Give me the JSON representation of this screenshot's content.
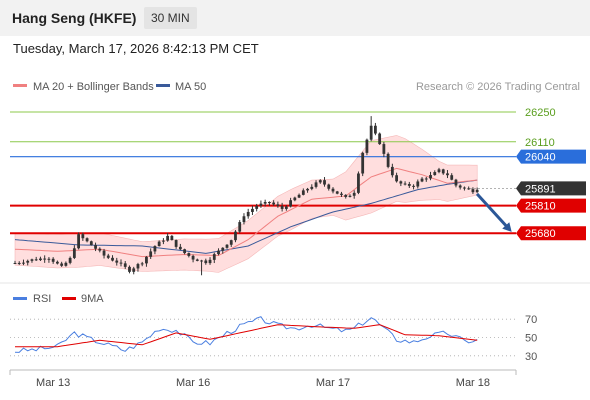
{
  "header": {
    "title": "Hang Seng (HKFE)",
    "interval": "30 MIN"
  },
  "datetime": "Tuesday, March 17, 2026 8:42:13 PM CET",
  "legend": {
    "ma20": "MA 20 + Bollinger Bands",
    "ma50": "MA 50",
    "credit": "Research © 2026 Trading Central",
    "rsi": "RSI",
    "rsi_ma": "9MA"
  },
  "colors": {
    "candle": "#333333",
    "ma20": "#f08080",
    "bands": "#ffd8d8",
    "ma50": "#3a5a9a",
    "target": "#8cc84b",
    "target_text": "#5a9e1e",
    "pivot": "#2a6edb",
    "support": "#e00000",
    "last": "#333333",
    "arrow": "#2b5797",
    "rsi": "#4a7fe0",
    "rsi_ma": "#e00000"
  },
  "chart_data": [
    {
      "type": "candlestick",
      "price_range": [
        25460,
        26330
      ],
      "x_ticks": [
        "Mar 13",
        "Mar 16",
        "Mar 17",
        "Mar 18"
      ],
      "levels": [
        {
          "value": 26250,
          "label": "26250",
          "kind": "target"
        },
        {
          "value": 26110,
          "label": "26110",
          "kind": "target"
        },
        {
          "value": 26040,
          "label": "26040",
          "kind": "pivot"
        },
        {
          "value": 25891,
          "label": "25891",
          "kind": "last"
        },
        {
          "value": 25810,
          "label": "25810",
          "kind": "support"
        },
        {
          "value": 25680,
          "label": "25680",
          "kind": "support"
        }
      ],
      "anchors": [
        [
          0,
          25540
        ],
        [
          4,
          25555
        ],
        [
          8,
          25565
        ],
        [
          11,
          25520
        ],
        [
          13,
          25560
        ],
        [
          15,
          25670
        ],
        [
          18,
          25625
        ],
        [
          21,
          25575
        ],
        [
          24,
          25545
        ],
        [
          27,
          25505
        ],
        [
          30,
          25545
        ],
        [
          33,
          25620
        ],
        [
          36,
          25665
        ],
        [
          39,
          25600
        ],
        [
          42,
          25560
        ],
        [
          45,
          25545
        ],
        [
          48,
          25595
        ],
        [
          51,
          25650
        ],
        [
          54,
          25765
        ],
        [
          57,
          25810
        ],
        [
          60,
          25825
        ],
        [
          63,
          25795
        ],
        [
          66,
          25845
        ],
        [
          69,
          25890
        ],
        [
          72,
          25925
        ],
        [
          75,
          25880
        ],
        [
          78,
          25845
        ],
        [
          80,
          25875
        ],
        [
          82,
          26060
        ],
        [
          84,
          26180
        ],
        [
          86,
          26105
        ],
        [
          88,
          25995
        ],
        [
          90,
          25920
        ],
        [
          92,
          25905
        ],
        [
          94,
          25905
        ],
        [
          96,
          25935
        ],
        [
          98,
          25950
        ],
        [
          100,
          25975
        ],
        [
          102,
          25955
        ],
        [
          104,
          25905
        ],
        [
          106,
          25890
        ],
        [
          108,
          25880
        ],
        [
          109,
          25891
        ]
      ],
      "ma20_anchors": [
        [
          0,
          25605
        ],
        [
          10,
          25595
        ],
        [
          20,
          25605
        ],
        [
          30,
          25570
        ],
        [
          40,
          25580
        ],
        [
          48,
          25575
        ],
        [
          55,
          25650
        ],
        [
          62,
          25760
        ],
        [
          70,
          25840
        ],
        [
          78,
          25855
        ],
        [
          84,
          25945
        ],
        [
          90,
          25985
        ],
        [
          96,
          25955
        ],
        [
          102,
          25915
        ],
        [
          109,
          25930
        ]
      ],
      "band_width_anchors": [
        [
          0,
          75
        ],
        [
          15,
          80
        ],
        [
          30,
          70
        ],
        [
          45,
          75
        ],
        [
          55,
          90
        ],
        [
          65,
          95
        ],
        [
          75,
          85
        ],
        [
          84,
          170
        ],
        [
          92,
          150
        ],
        [
          100,
          90
        ],
        [
          109,
          70
        ]
      ],
      "ma50_anchors": [
        [
          0,
          25650
        ],
        [
          15,
          25625
        ],
        [
          30,
          25620
        ],
        [
          45,
          25585
        ],
        [
          55,
          25620
        ],
        [
          65,
          25710
        ],
        [
          75,
          25780
        ],
        [
          84,
          25820
        ],
        [
          95,
          25885
        ],
        [
          102,
          25910
        ],
        [
          109,
          25930
        ]
      ]
    },
    {
      "type": "line",
      "name": "RSI",
      "y_range": [
        20,
        80
      ],
      "y_ticks": [
        30,
        50,
        70
      ],
      "rsi_anchors": [
        [
          0,
          35
        ],
        [
          5,
          37
        ],
        [
          10,
          40
        ],
        [
          14,
          55
        ],
        [
          18,
          48
        ],
        [
          22,
          42
        ],
        [
          26,
          36
        ],
        [
          30,
          45
        ],
        [
          34,
          60
        ],
        [
          38,
          58
        ],
        [
          42,
          45
        ],
        [
          46,
          44
        ],
        [
          50,
          55
        ],
        [
          54,
          64
        ],
        [
          58,
          70
        ],
        [
          62,
          63
        ],
        [
          66,
          60
        ],
        [
          70,
          64
        ],
        [
          74,
          60
        ],
        [
          78,
          57
        ],
        [
          80,
          60
        ],
        [
          84,
          72
        ],
        [
          87,
          60
        ],
        [
          90,
          48
        ],
        [
          94,
          45
        ],
        [
          98,
          52
        ],
        [
          102,
          55
        ],
        [
          106,
          46
        ],
        [
          109,
          47
        ]
      ],
      "ma_anchors": [
        [
          0,
          40
        ],
        [
          10,
          40
        ],
        [
          20,
          47
        ],
        [
          30,
          42
        ],
        [
          38,
          55
        ],
        [
          46,
          48
        ],
        [
          54,
          56
        ],
        [
          62,
          64
        ],
        [
          70,
          62
        ],
        [
          80,
          60
        ],
        [
          86,
          64
        ],
        [
          92,
          53
        ],
        [
          100,
          52
        ],
        [
          109,
          47
        ]
      ]
    }
  ]
}
